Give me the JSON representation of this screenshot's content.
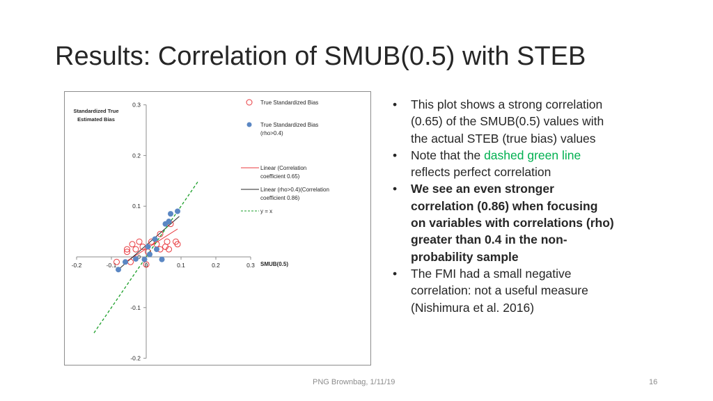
{
  "slide": {
    "title": "Results: Correlation of SMUB(0.5) with STEB",
    "footer": "PNG Brownbag, 1/11/19",
    "page_number": "16",
    "bullet_symbol": "•",
    "bullets": [
      {
        "parts": [
          {
            "text": "This plot shows a strong correlation (0.65) of the SMUB(0.5) values with the actual STEB (true bias) values",
            "style": "normal"
          }
        ]
      },
      {
        "parts": [
          {
            "text": "Note that the ",
            "style": "normal"
          },
          {
            "text": "dashed green line",
            "style": "green"
          },
          {
            "text": " reflects perfect correlation",
            "style": "normal"
          }
        ]
      },
      {
        "parts": [
          {
            "text": "We see an even stronger correlation (0.86) when focusing on variables with correlations (rho) greater than 0.4 in the non-probability sample",
            "style": "bold"
          }
        ]
      },
      {
        "parts": [
          {
            "text": "The FMI had a small negative correlation: not a useful measure (Nishimura et al. 2016)",
            "style": "normal"
          }
        ]
      }
    ],
    "colors": {
      "green_text": "#00b050"
    }
  },
  "chart_data": {
    "type": "scatter",
    "xlabel": "SMUB(0.5)",
    "ylabel": [
      "Standardized True",
      "Estimated Bias"
    ],
    "xlim": [
      -0.2,
      0.3
    ],
    "ylim": [
      -0.2,
      0.3
    ],
    "x_ticks": [
      -0.2,
      -0.1,
      0,
      0.1,
      0.2,
      0.3
    ],
    "x_tick_labels": [
      "-0.2",
      "-0.1",
      "0",
      "0.1",
      "0.2",
      "0.3"
    ],
    "y_ticks": [
      -0.2,
      -0.1,
      0,
      0.1,
      0.2,
      0.3
    ],
    "y_tick_labels": [
      "-0.2",
      "-0.1",
      "0",
      "0.1",
      "0.2",
      "0.3"
    ],
    "grid": false,
    "legend_position": "right",
    "series": [
      {
        "name": "True Standardized Bias",
        "marker": "open-circle",
        "color": "#e8383d",
        "points": [
          [
            -0.055,
            0.01
          ],
          [
            -0.055,
            0.015
          ],
          [
            -0.04,
            0.025
          ],
          [
            -0.03,
            0.015
          ],
          [
            -0.02,
            0.03
          ],
          [
            -0.045,
            -0.01
          ],
          [
            -0.01,
            0.02
          ],
          [
            0.005,
            0.01
          ],
          [
            0.015,
            0.03
          ],
          [
            0.04,
            0.015
          ],
          [
            0.03,
            0.025
          ],
          [
            0.055,
            0.02
          ],
          [
            0.065,
            0.015
          ],
          [
            -0.085,
            -0.01
          ],
          [
            0.0,
            -0.015
          ],
          [
            0.04,
            0.045
          ],
          [
            0.07,
            0.065
          ],
          [
            0.085,
            0.03
          ],
          [
            0.09,
            0.025
          ],
          [
            0.06,
            0.03
          ]
        ]
      },
      {
        "name": "True Standardized Bias (rho>0.4)",
        "marker": "filled-circle",
        "color": "#5b87c3",
        "points": [
          [
            -0.08,
            -0.025
          ],
          [
            -0.06,
            -0.01
          ],
          [
            -0.03,
            -0.004
          ],
          [
            0.005,
            0.02
          ],
          [
            0.03,
            0.015
          ],
          [
            0.055,
            0.065
          ],
          [
            0.065,
            0.07
          ],
          [
            0.07,
            0.085
          ],
          [
            0.09,
            0.09
          ],
          [
            0.025,
            0.035
          ],
          [
            0.045,
            -0.005
          ],
          [
            -0.005,
            -0.005
          ],
          [
            0.01,
            0.005
          ]
        ]
      },
      {
        "name": "Linear (Correlation coefficient 0.65)",
        "type": "line",
        "color": "#e8383d",
        "points": [
          [
            -0.06,
            -0.01
          ],
          [
            0.09,
            0.055
          ]
        ]
      },
      {
        "name": "Linear (rho>0.4)(Correlation coefficient 0.86)",
        "type": "line",
        "color": "#262626",
        "points": [
          [
            -0.08,
            -0.025
          ],
          [
            0.095,
            0.08
          ]
        ]
      },
      {
        "name": "y = x",
        "type": "dashed-line",
        "color": "#1a9e28",
        "points": [
          [
            -0.15,
            -0.15
          ],
          [
            0.15,
            0.15
          ]
        ]
      }
    ],
    "legend": [
      {
        "label": "True Standardized Bias",
        "marker": "open-circle",
        "color": "#e8383d"
      },
      {
        "label": "True Standardized Bias (rho>0.4)",
        "marker": "filled-circle",
        "color": "#5b87c3"
      },
      {
        "label": "Linear (Correlation coefficient 0.65)",
        "marker": "line",
        "color": "#e8383d"
      },
      {
        "label": "Linear (rho>0.4)(Correlation coefficient 0.86)",
        "marker": "line",
        "color": "#262626"
      },
      {
        "label": "y = x",
        "marker": "dashed-line",
        "color": "#1a9e28"
      }
    ]
  }
}
